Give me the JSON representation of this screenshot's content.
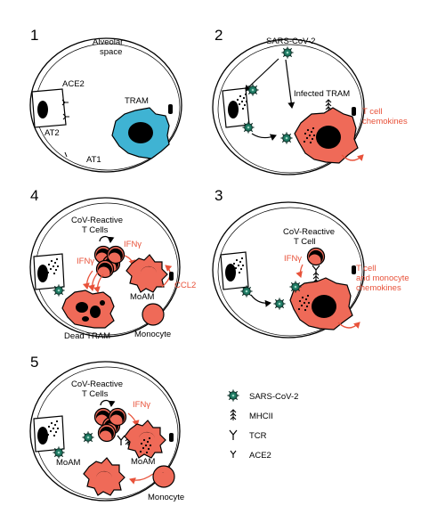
{
  "colors": {
    "accent_red": "#e8523a",
    "tram_blue": "#3fb3d3",
    "cell_red": "#ef6a58",
    "black": "#000000"
  },
  "panels": {
    "p1": {
      "number": "1",
      "alveolar_space": [
        "Alveolar",
        "space"
      ],
      "ace2": "ACE2",
      "tram": "TRAM",
      "at2": "AT2",
      "at1": "AT1"
    },
    "p2": {
      "number": "2",
      "virus": "SARS-CoV-2",
      "infected_tram": "Infected TRAM",
      "chemokines": [
        "T cell",
        "chemokines"
      ]
    },
    "p3": {
      "number": "3",
      "tcell": [
        "CoV-Reactive",
        "T Cell"
      ],
      "ifng": "IFNγ",
      "chemokines": [
        "T cell",
        "and monocyte",
        "chemokines"
      ]
    },
    "p4": {
      "number": "4",
      "tcells": [
        "CoV-Reactive",
        "T Cells"
      ],
      "ifng_top": "IFNγ",
      "ifng_left": "IFNγ",
      "moam": "MoAM",
      "ccl2": "CCL2",
      "dead_tram": "Dead TRAM",
      "monocyte": "Monocyte"
    },
    "p5": {
      "number": "5",
      "tcells": [
        "CoV-Reactive",
        "T Cells"
      ],
      "ifng": "IFNγ",
      "moam_right": "MoAM",
      "moam_left": "MoAM",
      "monocyte": "Monocyte"
    }
  },
  "legend": [
    {
      "icon": "virus-icon",
      "label": "SARS-CoV-2"
    },
    {
      "icon": "mhcii-icon",
      "label": "MHCII"
    },
    {
      "icon": "tcr-icon",
      "label": "TCR"
    },
    {
      "icon": "ace2-icon",
      "label": "ACE2"
    }
  ]
}
